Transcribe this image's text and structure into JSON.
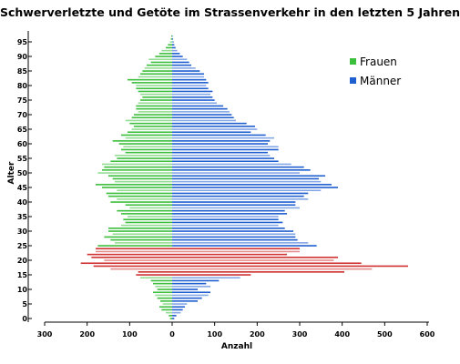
{
  "chart_data": {
    "type": "bar",
    "orientation": "horizontal",
    "title": "Schwerverletzte und Getöte im Strassenverkehr in den letzten 5 Jahren",
    "xlabel": "Anzahl",
    "ylabel": "Alter",
    "xlim": [
      -300,
      600
    ],
    "ylim": [
      0,
      98
    ],
    "x_ticks": [
      -300,
      -200,
      -100,
      0,
      100,
      200,
      300,
      400,
      500,
      600
    ],
    "x_tick_labels": [
      "300",
      "200",
      "100",
      "0",
      "100",
      "200",
      "300",
      "400",
      "500",
      "600"
    ],
    "y_ticks": [
      0,
      5,
      10,
      15,
      20,
      25,
      30,
      35,
      40,
      45,
      50,
      55,
      60,
      65,
      70,
      75,
      80,
      85,
      90,
      95
    ],
    "y_tick_labels": [
      "0",
      "5",
      "10",
      "15",
      "20",
      "25",
      "30",
      "35",
      "40",
      "45",
      "50",
      "55",
      "60",
      "65",
      "70",
      "75",
      "80",
      "85",
      "90",
      "95"
    ],
    "grid": false,
    "legend_position": "top-right",
    "age": [
      0,
      1,
      2,
      3,
      4,
      5,
      6,
      7,
      8,
      9,
      10,
      11,
      12,
      13,
      14,
      15,
      16,
      17,
      18,
      19,
      20,
      21,
      22,
      23,
      24,
      25,
      26,
      27,
      28,
      29,
      30,
      31,
      32,
      33,
      34,
      35,
      36,
      37,
      38,
      39,
      40,
      41,
      42,
      43,
      44,
      45,
      46,
      47,
      48,
      49,
      50,
      51,
      52,
      53,
      54,
      55,
      56,
      57,
      58,
      59,
      60,
      61,
      62,
      63,
      64,
      65,
      66,
      67,
      68,
      69,
      70,
      71,
      72,
      73,
      74,
      75,
      76,
      77,
      78,
      79,
      80,
      81,
      82,
      83,
      84,
      85,
      86,
      87,
      88,
      89,
      90,
      91,
      92,
      93,
      94,
      95,
      96,
      97
    ],
    "highlight_ages": [
      15,
      16,
      17,
      18,
      19,
      20,
      21,
      22,
      23,
      24
    ],
    "series": [
      {
        "name": "Frauen",
        "color": "#3cbf3c",
        "highlight_color": "#d03030",
        "values": [
          5,
          8,
          15,
          25,
          30,
          22,
          28,
          35,
          40,
          45,
          35,
          40,
          45,
          50,
          75,
          85,
          80,
          145,
          185,
          215,
          160,
          190,
          200,
          180,
          180,
          175,
          135,
          145,
          160,
          140,
          150,
          150,
          120,
          110,
          115,
          105,
          120,
          130,
          100,
          110,
          145,
          130,
          150,
          155,
          130,
          165,
          180,
          135,
          140,
          150,
          175,
          165,
          160,
          165,
          145,
          130,
          135,
          110,
          120,
          115,
          125,
          140,
          110,
          120,
          105,
          95,
          90,
          100,
          110,
          95,
          90,
          80,
          85,
          85,
          80,
          75,
          70,
          75,
          80,
          85,
          85,
          95,
          105,
          80,
          75,
          70,
          65,
          60,
          50,
          55,
          40,
          30,
          25,
          15,
          10,
          5,
          3,
          2
        ]
      },
      {
        "name": "Männer",
        "color": "#1f5fd0",
        "highlight_color": "#d03030",
        "values": [
          5,
          10,
          20,
          25,
          30,
          35,
          60,
          70,
          85,
          90,
          60,
          90,
          80,
          110,
          160,
          185,
          405,
          470,
          555,
          445,
          380,
          390,
          270,
          300,
          300,
          340,
          320,
          295,
          290,
          290,
          285,
          265,
          250,
          260,
          250,
          250,
          270,
          265,
          300,
          290,
          290,
          320,
          310,
          320,
          350,
          390,
          375,
          350,
          345,
          360,
          300,
          325,
          310,
          280,
          250,
          240,
          230,
          225,
          250,
          250,
          225,
          230,
          240,
          220,
          185,
          200,
          195,
          175,
          150,
          145,
          140,
          135,
          130,
          120,
          105,
          100,
          95,
          90,
          95,
          85,
          80,
          85,
          80,
          75,
          75,
          65,
          55,
          45,
          40,
          35,
          25,
          18,
          12,
          8,
          5,
          4,
          2,
          1
        ]
      }
    ]
  }
}
